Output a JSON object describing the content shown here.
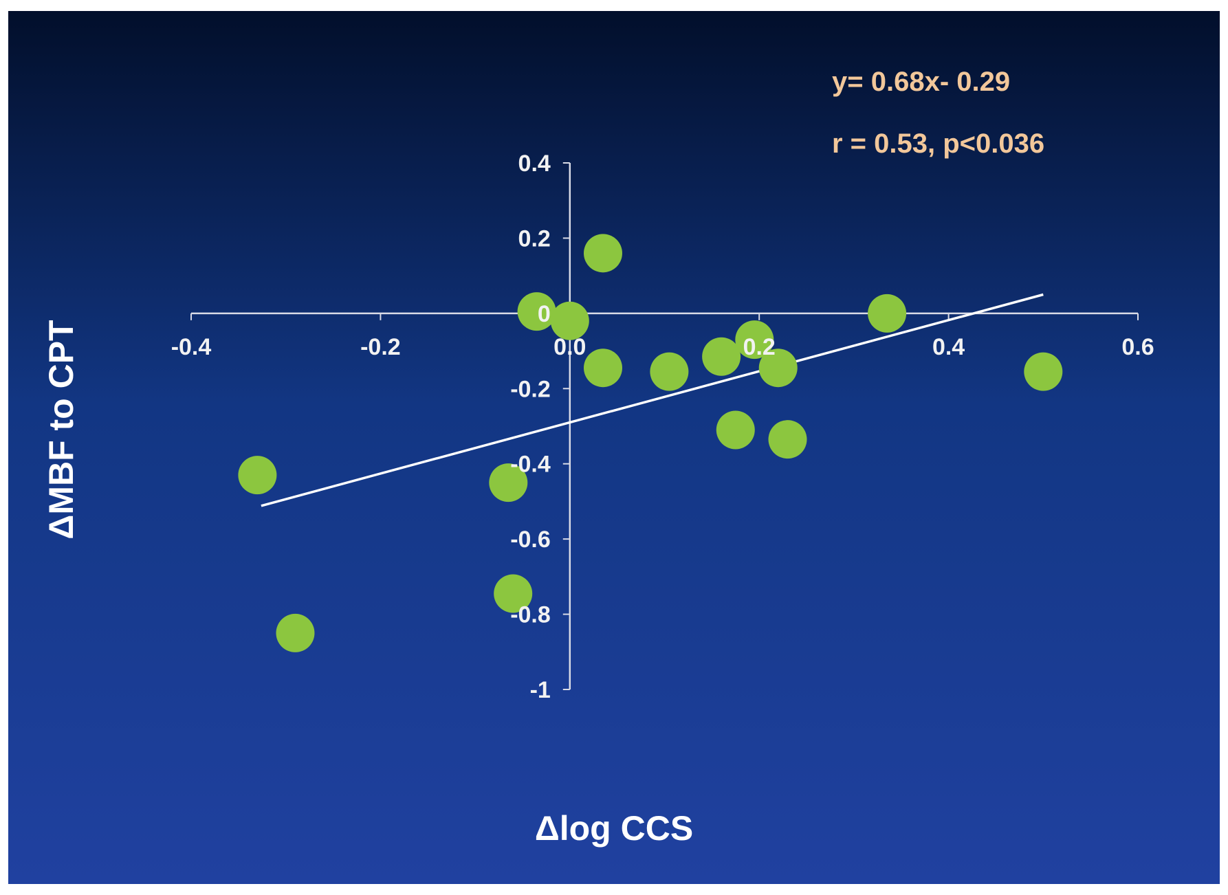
{
  "chart_data": {
    "type": "scatter",
    "title": "",
    "xlabel": "Δlog CCS",
    "ylabel": "ΔMBF to CPT",
    "xlim": [
      -0.4,
      0.6
    ],
    "ylim": [
      -1,
      0.4
    ],
    "x_ticks": [
      "-0.4",
      "-0.2",
      "0.0",
      "0.2",
      "0.4",
      "0.6"
    ],
    "y_ticks": [
      "0.4",
      "0.2",
      "0",
      "-0.2",
      "-0.4",
      "-0.6",
      "-0.8",
      "-1"
    ],
    "grid": false,
    "legend": "none",
    "annotations": {
      "equation": "y= 0.68x- 0.29",
      "stats": "r = 0.53,  p<0.036"
    },
    "trendline": {
      "slope": 0.68,
      "intercept": -0.29,
      "x_range": [
        -0.326,
        0.5
      ]
    },
    "points": [
      {
        "x": 0.035,
        "y": 0.16
      },
      {
        "x": -0.035,
        "y": 0.005
      },
      {
        "x": 0.0,
        "y": -0.02
      },
      {
        "x": 0.335,
        "y": 0.0
      },
      {
        "x": 0.195,
        "y": -0.07
      },
      {
        "x": 0.16,
        "y": -0.115
      },
      {
        "x": 0.22,
        "y": -0.145
      },
      {
        "x": 0.035,
        "y": -0.145
      },
      {
        "x": 0.105,
        "y": -0.155
      },
      {
        "x": 0.5,
        "y": -0.155
      },
      {
        "x": 0.175,
        "y": -0.31
      },
      {
        "x": 0.23,
        "y": -0.335
      },
      {
        "x": -0.33,
        "y": -0.43
      },
      {
        "x": -0.065,
        "y": -0.45
      },
      {
        "x": -0.06,
        "y": -0.745
      },
      {
        "x": -0.29,
        "y": -0.85
      }
    ],
    "colors": {
      "background_top": "#020f2b",
      "background_bottom": "#2041a0",
      "points": "#8cc63f",
      "axes": "#d9dbe6",
      "trendline": "#ffffff",
      "annotation_text": "#f2c79a"
    }
  }
}
